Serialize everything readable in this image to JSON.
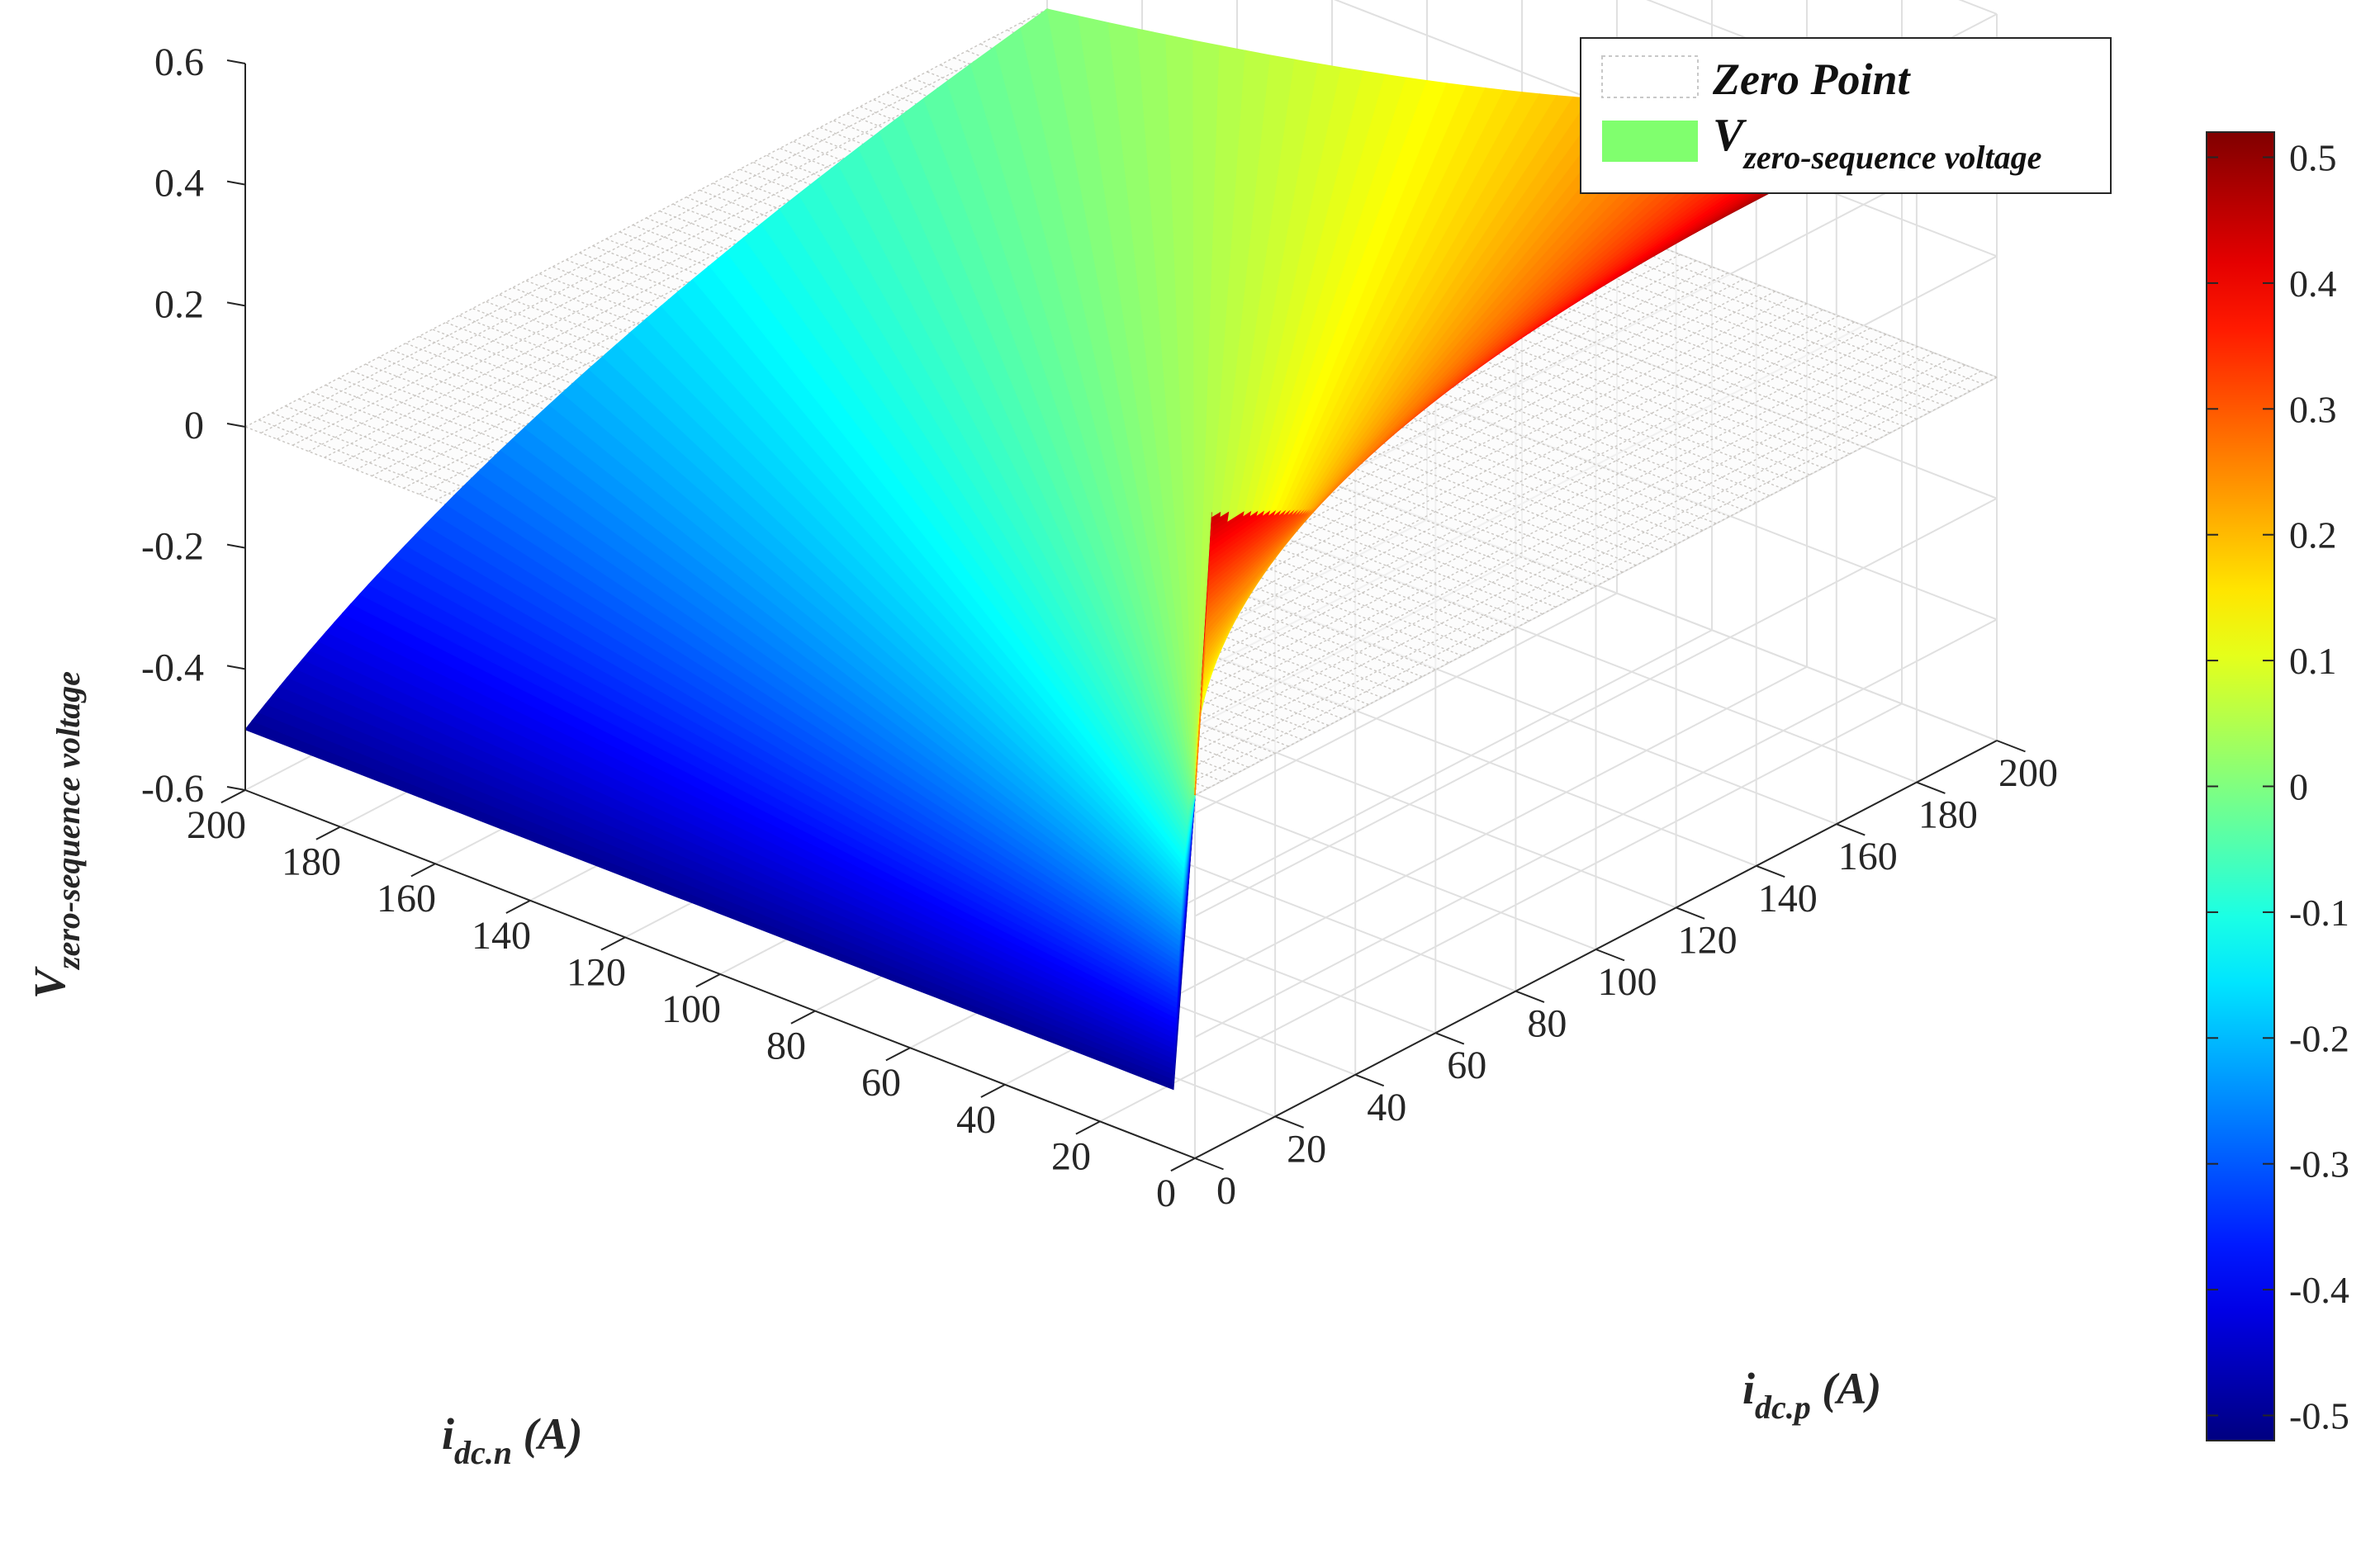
{
  "chart_data": {
    "type": "surface",
    "legend": {
      "location": "top-right",
      "entries": [
        {
          "name": "Zero Point",
          "style": "dotted-mesh",
          "color": "#c8c8c8"
        },
        {
          "name_main": "V",
          "name_sub": "zero-sequence voltage",
          "style": "filled",
          "color": "#80ff6e"
        }
      ]
    },
    "axes": {
      "x": {
        "label_main": "i",
        "label_sub": "dc.n",
        "label_unit": " (A)",
        "range": [
          0,
          200
        ],
        "ticks": [
          "0",
          "20",
          "40",
          "60",
          "80",
          "100",
          "120",
          "140",
          "160",
          "180",
          "200"
        ]
      },
      "y": {
        "label_main": "i",
        "label_sub": "dc.p",
        "label_unit": " (A)",
        "range": [
          0,
          200
        ],
        "ticks": [
          "0",
          "20",
          "40",
          "60",
          "80",
          "100",
          "120",
          "140",
          "160",
          "180",
          "200"
        ]
      },
      "z": {
        "label_main": "V",
        "label_sub": "zero-sequence voltage",
        "range": [
          -0.6,
          0.6
        ],
        "ticks": [
          "-0.6",
          "-0.4",
          "-0.2",
          "0",
          "0.2",
          "0.4",
          "0.6"
        ]
      }
    },
    "grid": true,
    "surface": {
      "name": "V zero-sequence voltage",
      "function": "0.5 * (i_dc.p - i_dc.n) / (i_dc.p + i_dc.n)",
      "corner_values": [
        {
          "i_dc_n": 0,
          "i_dc_p": 0,
          "v": 0
        },
        {
          "i_dc_n": 200,
          "i_dc_p": 0,
          "v": -0.5
        },
        {
          "i_dc_n": 0,
          "i_dc_p": 200,
          "v": 0.5
        },
        {
          "i_dc_n": 200,
          "i_dc_p": 200,
          "v": 0
        }
      ],
      "colormap": "jet"
    },
    "zero_plane": {
      "name": "Zero Point",
      "z": 0
    },
    "colorbar": {
      "range": [
        -0.52,
        0.52
      ],
      "ticks": [
        "-0.5",
        "-0.4",
        "-0.3",
        "-0.2",
        "-0.1",
        "0",
        "0.1",
        "0.2",
        "0.3",
        "0.4",
        "0.5"
      ]
    }
  }
}
